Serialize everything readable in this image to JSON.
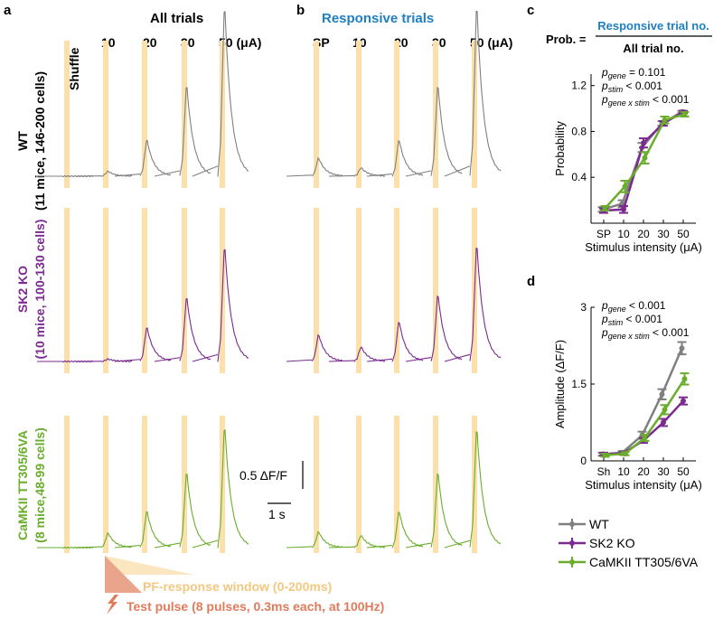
{
  "panels": {
    "a": {
      "letter": "a",
      "title": "All trials",
      "columns": [
        "Shuffle",
        "10",
        "20",
        "30",
        "50 (μA)"
      ]
    },
    "b": {
      "letter": "b",
      "title": "Responsive trials",
      "columns": [
        "SP",
        "10",
        "20",
        "30",
        "50 (μA)"
      ]
    },
    "c": {
      "letter": "c"
    },
    "d": {
      "letter": "d"
    }
  },
  "rows": [
    {
      "line1": "WT",
      "line2": "(11 mice, 146-200 cells)",
      "color": "#808080"
    },
    {
      "line1": "SK2 KO",
      "line2": "(10 mice, 100-130 cells)",
      "color": "#7b2a8f"
    },
    {
      "line1": "CaMKII TT305/6VA",
      "line2": "(8 mice,48-99 cells)",
      "color": "#6aad2c"
    }
  ],
  "colors": {
    "wt": "#808080",
    "sk2": "#7b2a8f",
    "camk": "#6aad2c",
    "window": "#fbe0aa",
    "pulse": "#e07b5c",
    "accent_blue": "#1f7fc0"
  },
  "trace_peaks": {
    "all": [
      [
        0,
        0.04,
        0.3,
        0.75,
        1.4
      ],
      [
        0,
        0.02,
        0.28,
        0.53,
        0.95
      ],
      [
        0,
        0.12,
        0.3,
        0.62,
        1.0
      ]
    ],
    "responsive": [
      [
        0.15,
        0.07,
        0.3,
        0.75,
        1.4
      ],
      [
        0.22,
        0.12,
        0.33,
        0.55,
        0.96
      ],
      [
        0.13,
        0.1,
        0.3,
        0.62,
        0.98
      ]
    ]
  },
  "scale_bar": {
    "amplitude_label": "0.5 ΔF/F",
    "time_label": "1 s"
  },
  "formula": {
    "lhs": "Prob. =",
    "numerator": "Responsive trial no.",
    "denominator": "All trial no."
  },
  "legend": {
    "wt": "WT",
    "sk2": "SK2 KO",
    "camk": "CaMKII TT305/6VA"
  },
  "pf_window_label": "PF-response window (0-200ms)",
  "test_pulse_label": "Test pulse (8 pulses, 0.3ms each, at 100Hz)",
  "chart_data": [
    {
      "panel": "c",
      "type": "line",
      "categories": [
        "SP",
        "10",
        "20",
        "30",
        "50"
      ],
      "xlabel": "Stimulus intensity (μA)",
      "ylabel": "Probability",
      "ylim": [
        0,
        1.3
      ],
      "yticks": [
        "0.4",
        "0.8",
        "1.2"
      ],
      "stats": [
        {
          "sub": "gene",
          "rel": "= 0.101"
        },
        {
          "sub": "stim",
          "rel": "< 0.001"
        },
        {
          "sub": "gene x stim",
          "rel": "< 0.001"
        }
      ],
      "series": [
        {
          "name": "WT",
          "color": "#808080",
          "values": [
            0.12,
            0.17,
            0.66,
            0.87,
            0.97
          ],
          "err": [
            0.02,
            0.03,
            0.04,
            0.02,
            0.01
          ]
        },
        {
          "name": "SK2 KO",
          "color": "#7b2a8f",
          "values": [
            0.11,
            0.12,
            0.7,
            0.87,
            0.97
          ],
          "err": [
            0.02,
            0.03,
            0.04,
            0.02,
            0.01
          ]
        },
        {
          "name": "CaMKII TT305/6VA",
          "color": "#6aad2c",
          "values": [
            0.13,
            0.32,
            0.57,
            0.9,
            0.95
          ],
          "err": [
            0.02,
            0.05,
            0.05,
            0.03,
            0.02
          ]
        }
      ]
    },
    {
      "panel": "d",
      "type": "line",
      "categories": [
        "Sh",
        "10",
        "20",
        "30",
        "50"
      ],
      "xlabel": "Stimulus intensity (μA)",
      "ylabel": "Amplitude (ΔF/F)",
      "ylim": [
        0,
        3
      ],
      "yticks": [
        "0",
        "1.5",
        "3"
      ],
      "stats": [
        {
          "sub": "gene",
          "rel": "< 0.001"
        },
        {
          "sub": "stim",
          "rel": "< 0.001"
        },
        {
          "sub": "gene x stim",
          "rel": "< 0.001"
        }
      ],
      "series": [
        {
          "name": "WT",
          "color": "#808080",
          "values": [
            0.13,
            0.16,
            0.5,
            1.3,
            2.2
          ],
          "err": [
            0.03,
            0.03,
            0.07,
            0.1,
            0.12
          ]
        },
        {
          "name": "SK2 KO",
          "color": "#7b2a8f",
          "values": [
            0.13,
            0.15,
            0.4,
            0.75,
            1.17
          ],
          "err": [
            0.03,
            0.03,
            0.05,
            0.07,
            0.07
          ]
        },
        {
          "name": "CaMKII TT305/6VA",
          "color": "#6aad2c",
          "values": [
            0.11,
            0.14,
            0.45,
            1.0,
            1.6
          ],
          "err": [
            0.03,
            0.03,
            0.06,
            0.09,
            0.11
          ]
        }
      ]
    }
  ]
}
